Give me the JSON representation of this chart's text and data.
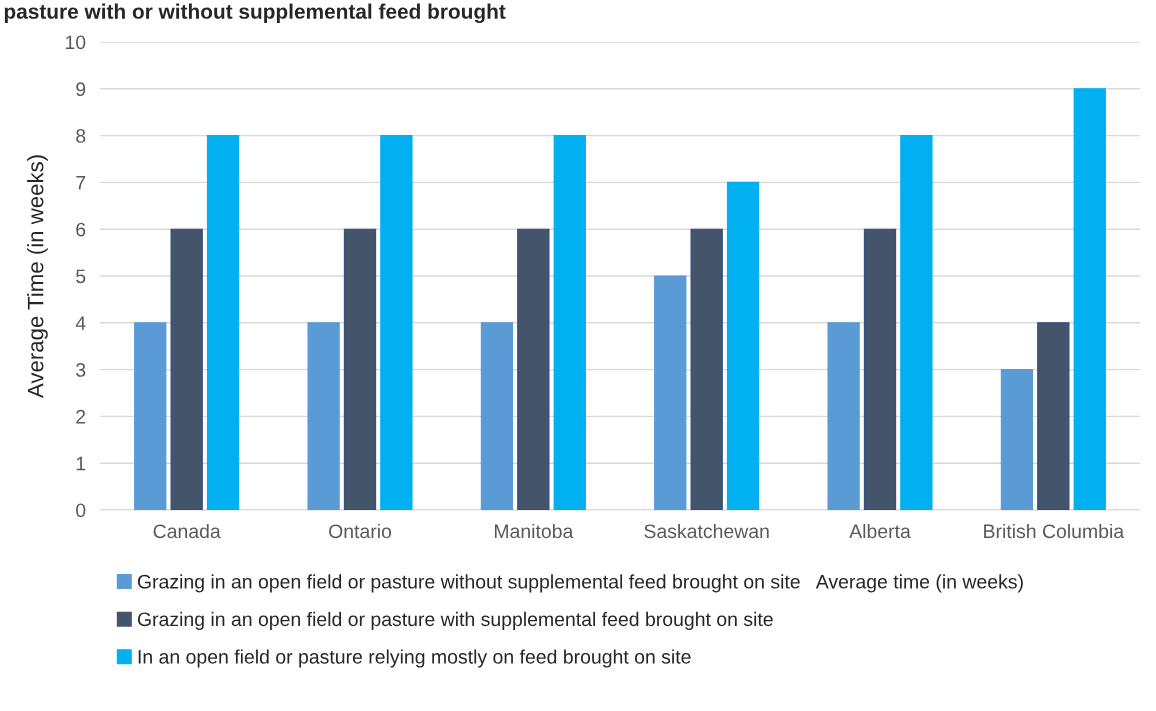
{
  "chart_data": {
    "type": "bar",
    "title": "pasture with or without supplemental feed brought",
    "ylabel": "Average Time (in weeks)",
    "categories": [
      "Canada",
      "Ontario",
      "Manitoba",
      "Saskatchewan",
      "Alberta",
      "British Columbia"
    ],
    "series": [
      {
        "name": "Grazing in an open field or pasture without supplemental feed brought on site   Average time (in weeks)",
        "color": "#5b9bd5",
        "values": [
          4,
          4,
          4,
          5,
          4,
          3
        ]
      },
      {
        "name": "Grazing in an open field or pasture with supplemental feed brought on site",
        "color": "#44546a",
        "values": [
          6,
          6,
          6,
          6,
          6,
          4
        ]
      },
      {
        "name": "In an open field or pasture relying mostly on feed brought on site",
        "color": "#00b0f0",
        "values": [
          8,
          8,
          8,
          7,
          8,
          9
        ]
      }
    ],
    "ylim": [
      0,
      10
    ],
    "yticks": [
      0,
      1,
      2,
      3,
      4,
      5,
      6,
      7,
      8,
      9,
      10
    ],
    "grid": "y",
    "legend": "bottom"
  }
}
